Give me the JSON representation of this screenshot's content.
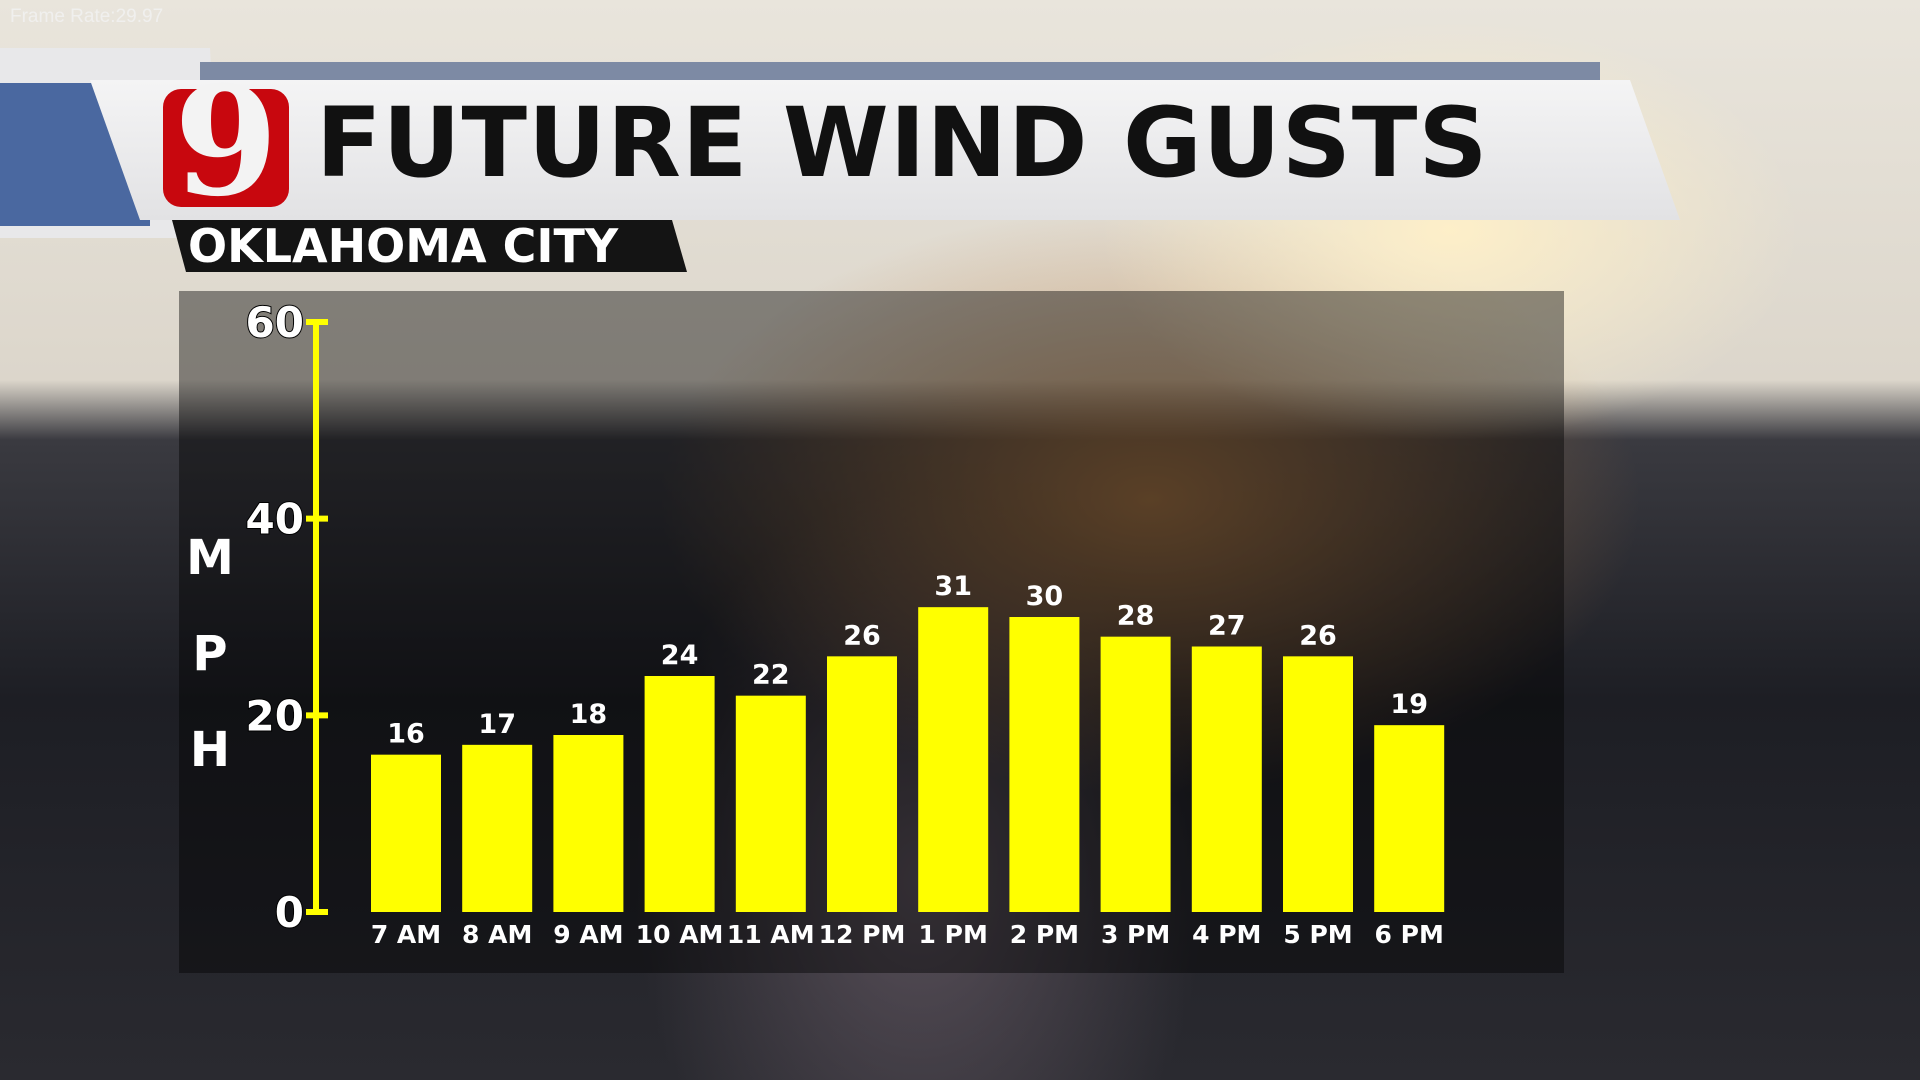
{
  "overlay": {
    "frame_rate": "Frame Rate:29.97"
  },
  "header": {
    "logo_text": "9",
    "title": "FUTURE WIND GUSTS",
    "subtitle": "OKLAHOMA CITY"
  },
  "colors": {
    "bar": "#ffff00",
    "axis": "#ffff00",
    "logo": "#c8070e"
  },
  "chart_data": {
    "type": "bar",
    "title": "FUTURE WIND GUSTS",
    "subtitle": "OKLAHOMA CITY",
    "ylabel": "MPH",
    "ylabel_letters": [
      "M",
      "P",
      "H"
    ],
    "xlabel": "",
    "categories": [
      "7 AM",
      "8 AM",
      "9 AM",
      "10 AM",
      "11 AM",
      "12 PM",
      "1 PM",
      "2 PM",
      "3 PM",
      "4 PM",
      "5 PM",
      "6 PM"
    ],
    "values": [
      16,
      17,
      18,
      24,
      22,
      26,
      31,
      30,
      28,
      27,
      26,
      19
    ],
    "ylim": [
      0,
      60
    ],
    "yticks": [
      0,
      20,
      40,
      60
    ],
    "grid": false,
    "data_labels": true
  }
}
